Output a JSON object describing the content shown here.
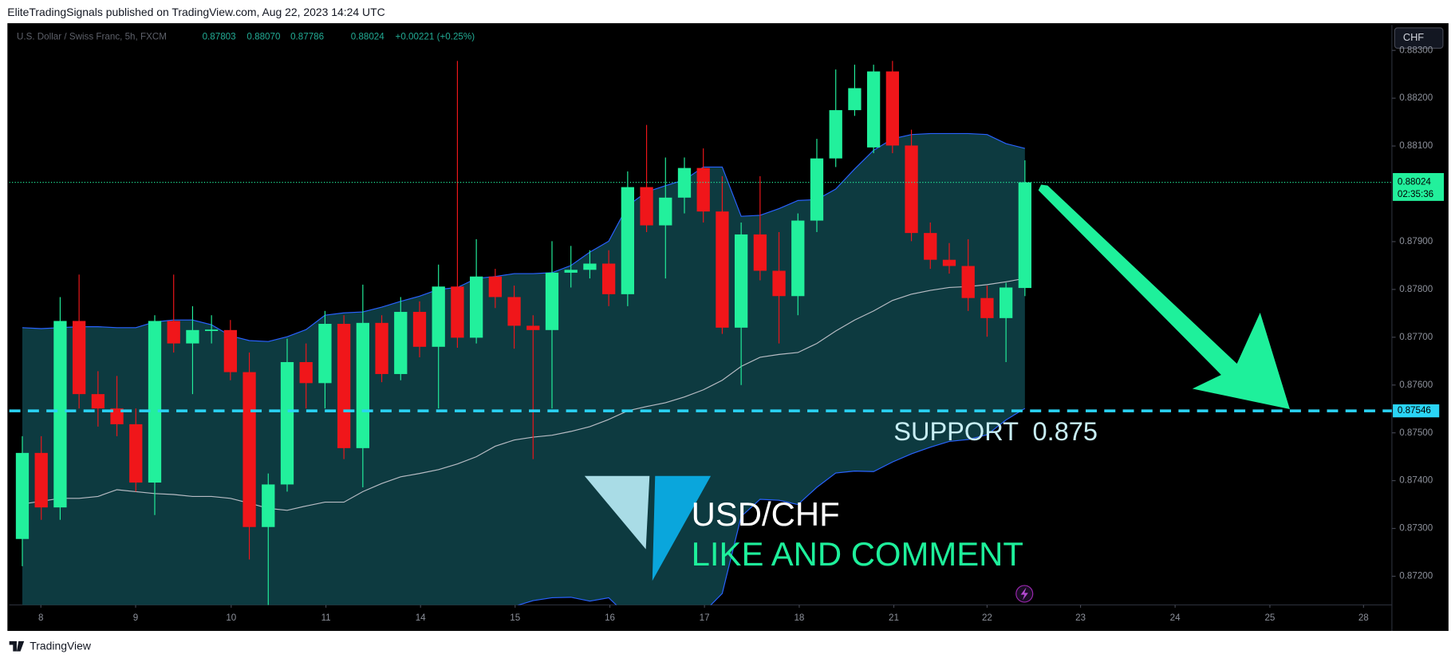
{
  "header": {
    "published": "EliteTradingSignals published on TradingView.com, Aug 22, 2023 14:24 UTC",
    "footer": "TradingView"
  },
  "chart_data": {
    "type": "candlestick",
    "symbol": "U.S. Dollar / Swiss Franc, 5h, FXCM",
    "currency": "CHF",
    "ohlc_labels": [
      "0.87803",
      "0.88070",
      "0.87786",
      "0.88024"
    ],
    "change": "+0.00221 (+0.25%)",
    "countdown": "02:35:36",
    "up_color": "#22f09c",
    "down_color": "#f0161a",
    "open": [
      0.87278,
      0.87458,
      0.87344,
      0.87734,
      0.87581,
      0.87551,
      0.87518,
      0.87396,
      0.87734,
      0.87687,
      0.87713,
      0.87715,
      0.87627,
      0.87303,
      0.87392,
      0.87648,
      0.87604,
      0.87728,
      0.87468,
      0.8773,
      0.87623,
      0.87753,
      0.8768,
      0.87806,
      0.87699,
      0.87827,
      0.87784,
      0.87724,
      0.87715,
      0.87835,
      0.87841,
      0.87854,
      0.8779,
      0.88014,
      0.87934,
      0.87992,
      0.88054,
      0.87963,
      0.8772,
      0.87915,
      0.87839,
      0.87786,
      0.87944,
      0.88074,
      0.88175,
      0.88097,
      0.88256,
      0.88101,
      0.87918,
      0.87862,
      0.87849,
      0.87782,
      0.8774,
      0.87803
    ],
    "high": [
      0.87493,
      0.87493,
      0.87784,
      0.87831,
      0.87629,
      0.87619,
      0.87551,
      0.87746,
      0.87831,
      0.87765,
      0.87746,
      0.87736,
      0.87668,
      0.87415,
      0.87697,
      0.87687,
      0.87755,
      0.87746,
      0.8781,
      0.87746,
      0.87784,
      0.87775,
      0.87852,
      0.88278,
      0.87905,
      0.87843,
      0.87808,
      0.87746,
      0.87901,
      0.87891,
      0.87882,
      0.87882,
      0.88047,
      0.88144,
      0.88076,
      0.88076,
      0.88095,
      0.88037,
      0.8794,
      0.88037,
      0.8792,
      0.87959,
      0.88115,
      0.8826,
      0.8827,
      0.8827,
      0.88278,
      0.88134,
      0.8794,
      0.87897,
      0.87905,
      0.87808,
      0.87814,
      0.8807
    ],
    "low": [
      0.87221,
      0.87318,
      0.87318,
      0.87551,
      0.87513,
      0.87493,
      0.87377,
      0.87328,
      0.87668,
      0.87581,
      0.87687,
      0.8761,
      0.87235,
      0.8714,
      0.87377,
      0.87551,
      0.87551,
      0.87445,
      0.87386,
      0.87606,
      0.8761,
      0.87658,
      0.87551,
      0.87678,
      0.87687,
      0.87761,
      0.87676,
      0.87445,
      0.87551,
      0.87804,
      0.87823,
      0.87765,
      0.87765,
      0.8792,
      0.87823,
      0.87959,
      0.8794,
      0.87707,
      0.876,
      0.87819,
      0.87687,
      0.87746,
      0.8792,
      0.88056,
      0.88163,
      0.88085,
      0.88085,
      0.87901,
      0.87843,
      0.87833,
      0.87755,
      0.87701,
      0.87648,
      0.87786
    ],
    "close": [
      0.87458,
      0.87344,
      0.87734,
      0.87581,
      0.87551,
      0.87518,
      0.87396,
      0.87734,
      0.87687,
      0.87715,
      0.87716,
      0.87627,
      0.87303,
      0.87392,
      0.87648,
      0.87604,
      0.87728,
      0.87468,
      0.8773,
      0.87623,
      0.87753,
      0.8768,
      0.87806,
      0.87699,
      0.87827,
      0.87784,
      0.87724,
      0.87715,
      0.87835,
      0.87841,
      0.87854,
      0.8779,
      0.88014,
      0.87934,
      0.87992,
      0.88054,
      0.87963,
      0.8772,
      0.87915,
      0.87839,
      0.87786,
      0.87944,
      0.88074,
      0.88175,
      0.88221,
      0.88256,
      0.88101,
      0.87918,
      0.87862,
      0.87849,
      0.87782,
      0.8774,
      0.87804,
      0.88024
    ],
    "bands": {
      "line_color": "#2962ff",
      "basis_color": "#b8bcc4",
      "fill": "#0d3a40",
      "upper": [
        0.8772,
        0.87718,
        0.8772,
        0.87722,
        0.87722,
        0.8772,
        0.8772,
        0.87732,
        0.87736,
        0.87736,
        0.87726,
        0.87703,
        0.87693,
        0.87691,
        0.87701,
        0.87716,
        0.87746,
        0.87751,
        0.87753,
        0.87763,
        0.87775,
        0.87786,
        0.878,
        0.87804,
        0.87823,
        0.87827,
        0.87833,
        0.87833,
        0.87835,
        0.8785,
        0.87878,
        0.87901,
        0.87975,
        0.88004,
        0.88017,
        0.88029,
        0.88056,
        0.88056,
        0.87953,
        0.87955,
        0.87969,
        0.87986,
        0.87988,
        0.8801,
        0.88052,
        0.88091,
        0.88115,
        0.88124,
        0.88126,
        0.88126,
        0.88126,
        0.88124,
        0.88105,
        0.88095
      ],
      "basis": [
        0.87351,
        0.87357,
        0.87363,
        0.87363,
        0.87367,
        0.87381,
        0.87377,
        0.87373,
        0.87371,
        0.87367,
        0.87367,
        0.87363,
        0.87353,
        0.87342,
        0.87338,
        0.87347,
        0.87355,
        0.87355,
        0.87377,
        0.87394,
        0.87408,
        0.87415,
        0.87423,
        0.87435,
        0.8745,
        0.87472,
        0.87485,
        0.87491,
        0.87495,
        0.87503,
        0.87513,
        0.87528,
        0.87546,
        0.87555,
        0.87563,
        0.87575,
        0.8759,
        0.8761,
        0.87639,
        0.87658,
        0.87664,
        0.87668,
        0.87687,
        0.87713,
        0.87736,
        0.87755,
        0.87777,
        0.8779,
        0.87798,
        0.87804,
        0.87806,
        0.8781,
        0.87816,
        0.87823
      ],
      "lower": [
        0.86982,
        0.86996,
        0.87006,
        0.87004,
        0.87012,
        0.87042,
        0.87034,
        0.87014,
        0.87006,
        0.86998,
        0.87008,
        0.87023,
        0.87013,
        0.86993,
        0.86975,
        0.86978,
        0.86964,
        0.86959,
        0.87001,
        0.87025,
        0.87041,
        0.87044,
        0.87046,
        0.87066,
        0.87077,
        0.87117,
        0.87137,
        0.87149,
        0.87155,
        0.87156,
        0.87148,
        0.87155,
        0.87117,
        0.87106,
        0.87109,
        0.87121,
        0.87124,
        0.87164,
        0.87325,
        0.87361,
        0.87359,
        0.8735,
        0.87386,
        0.87416,
        0.8742,
        0.87419,
        0.87439,
        0.87456,
        0.8747,
        0.87482,
        0.87486,
        0.87496,
        0.87527,
        0.87551
      ]
    },
    "xlim": [
      -0.69,
      72.4
    ],
    "xticks": [
      {
        "value": 0.98,
        "label": "8"
      },
      {
        "value": 5.99,
        "label": "9"
      },
      {
        "value": 11.04,
        "label": "10"
      },
      {
        "value": 16.05,
        "label": "11"
      },
      {
        "value": 21.05,
        "label": "14"
      },
      {
        "value": 26.05,
        "label": "15"
      },
      {
        "value": 31.06,
        "label": "16"
      },
      {
        "value": 36.06,
        "label": "17"
      },
      {
        "value": 41.07,
        "label": "18"
      },
      {
        "value": 46.07,
        "label": "21"
      },
      {
        "value": 51.0,
        "label": "22"
      },
      {
        "value": 55.94,
        "label": "23"
      },
      {
        "value": 60.94,
        "label": "24"
      },
      {
        "value": 65.95,
        "label": "25"
      },
      {
        "value": 70.9,
        "label": "28"
      }
    ],
    "ylim": [
      0.8714,
      0.88353
    ],
    "yticks": [
      {
        "value": 0.883,
        "label": "0.88300"
      },
      {
        "value": 0.882,
        "label": "0.88200"
      },
      {
        "value": 0.881,
        "label": "0.88100"
      },
      {
        "value": 0.879,
        "label": "0.87900"
      },
      {
        "value": 0.878,
        "label": "0.87800"
      },
      {
        "value": 0.877,
        "label": "0.87700"
      },
      {
        "value": 0.876,
        "label": "0.87600"
      },
      {
        "value": 0.875,
        "label": "0.87500"
      },
      {
        "value": 0.874,
        "label": "0.87400"
      },
      {
        "value": 0.873,
        "label": "0.87300"
      },
      {
        "value": 0.872,
        "label": "0.87200"
      }
    ],
    "grid": false,
    "support": {
      "value": 0.87546,
      "label": "SUPPORT  0.875",
      "color": "#2ad4f5"
    },
    "annotations": [
      "USD/CHF",
      "LIKE AND COMMENT"
    ]
  }
}
